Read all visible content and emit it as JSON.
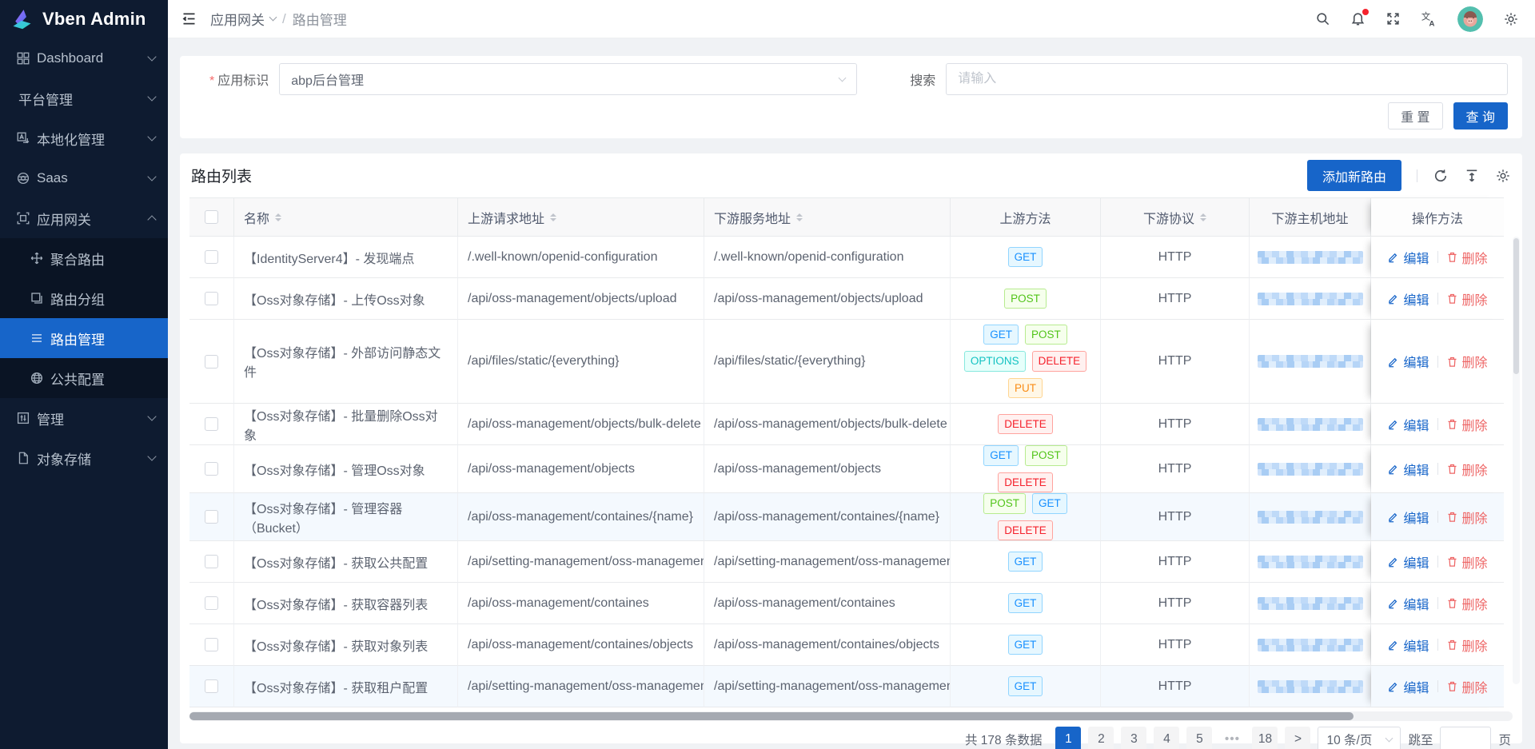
{
  "app": {
    "title": "Vben Admin"
  },
  "sidebar": {
    "items": [
      {
        "label": "Dashboard",
        "icon": "dashboard-icon",
        "chevron": "down"
      },
      {
        "label": "平台管理",
        "icon": null,
        "chevron": "down"
      },
      {
        "label": "本地化管理",
        "icon": "localization-icon",
        "chevron": "down"
      },
      {
        "label": "Saas",
        "icon": "saas-icon",
        "chevron": "down"
      },
      {
        "label": "应用网关",
        "icon": "gateway-icon",
        "chevron": "up",
        "expanded": true,
        "children": [
          {
            "label": "聚合路由",
            "icon": "aggregate-route-icon",
            "active": false
          },
          {
            "label": "路由分组",
            "icon": "route-group-icon",
            "active": false
          },
          {
            "label": "路由管理",
            "icon": "route-list-icon",
            "active": true
          },
          {
            "label": "公共配置",
            "icon": "global-config-icon",
            "active": false
          }
        ]
      },
      {
        "label": "管理",
        "icon": "manage-icon",
        "chevron": "down"
      },
      {
        "label": "对象存储",
        "icon": "object-storage-icon",
        "chevron": "down"
      }
    ]
  },
  "header": {
    "breadcrumb": {
      "parent": "应用网关",
      "separator": "/",
      "current": "路由管理"
    },
    "icons": [
      "search-icon",
      "notification-icon",
      "fullscreen-icon",
      "translate-icon",
      "avatar",
      "settings-icon"
    ],
    "notification_badge_color": "#f5222d"
  },
  "filter": {
    "app_label": "应用标识",
    "required_mark": "*",
    "app_value": "abp后台管理",
    "search_label": "搜索",
    "search_placeholder": "请输入",
    "reset_label": "重 置",
    "query_label": "查 询"
  },
  "table": {
    "title": "路由列表",
    "add_button": "添加新路由",
    "toolbar_icons": [
      "refresh-icon",
      "row-height-icon",
      "column-settings-icon"
    ],
    "columns": [
      {
        "label": "",
        "key": "checkbox",
        "sortable": false
      },
      {
        "label": "名称",
        "key": "name",
        "sortable": true
      },
      {
        "label": "上游请求地址",
        "key": "upstream",
        "sortable": true
      },
      {
        "label": "下游服务地址",
        "key": "downstream",
        "sortable": true
      },
      {
        "label": "上游方法",
        "key": "methods",
        "sortable": false
      },
      {
        "label": "下游协议",
        "key": "protocol",
        "sortable": true
      },
      {
        "label": "下游主机地址",
        "key": "host",
        "sortable": false
      },
      {
        "label": "操作方法",
        "key": "ops",
        "sortable": false
      }
    ],
    "method_styles": {
      "GET": {
        "fg": "#1890ff",
        "bg": "#e6f7ff",
        "bd": "#91d5ff"
      },
      "POST": {
        "fg": "#52c41a",
        "bg": "#f6ffed",
        "bd": "#b7eb8f"
      },
      "OPTIONS": {
        "fg": "#13c2c2",
        "bg": "#e6fffb",
        "bd": "#87e8de"
      },
      "DELETE": {
        "fg": "#f5222d",
        "bg": "#fff1f0",
        "bd": "#ffa39e"
      },
      "PUT": {
        "fg": "#fa8c16",
        "bg": "#fff7e6",
        "bd": "#ffd591"
      }
    },
    "rows": [
      {
        "name": "【IdentityServer4】- 发现端点",
        "upstream": "/.well-known/openid-configuration",
        "downstream": "/.well-known/openid-configuration",
        "methods": [
          "GET"
        ],
        "protocol": "HTTP",
        "host_redacted": true,
        "tall": false,
        "tinted": false
      },
      {
        "name": "【Oss对象存储】- 上传Oss对象",
        "upstream": "/api/oss-management/objects/upload",
        "downstream": "/api/oss-management/objects/upload",
        "methods": [
          "POST"
        ],
        "protocol": "HTTP",
        "host_redacted": true,
        "tall": false,
        "tinted": false
      },
      {
        "name": "【Oss对象存储】- 外部访问静态文件",
        "upstream": "/api/files/static/{everything}",
        "downstream": "/api/files/static/{everything}",
        "methods": [
          "GET",
          "POST",
          "OPTIONS",
          "DELETE",
          "PUT"
        ],
        "protocol": "HTTP",
        "host_redacted": true,
        "tall": true,
        "tinted": false
      },
      {
        "name": "【Oss对象存储】- 批量删除Oss对象",
        "upstream": "/api/oss-management/objects/bulk-delete",
        "downstream": "/api/oss-management/objects/bulk-delete",
        "methods": [
          "DELETE"
        ],
        "protocol": "HTTP",
        "host_redacted": true,
        "tall": false,
        "tinted": false
      },
      {
        "name": "【Oss对象存储】- 管理Oss对象",
        "upstream": "/api/oss-management/objects",
        "downstream": "/api/oss-management/objects",
        "methods": [
          "GET",
          "POST",
          "DELETE"
        ],
        "protocol": "HTTP",
        "host_redacted": true,
        "tall": false,
        "tinted": false
      },
      {
        "name": "【Oss对象存储】- 管理容器（Bucket）",
        "upstream": "/api/oss-management/containes/{name}",
        "downstream": "/api/oss-management/containes/{name}",
        "methods": [
          "POST",
          "GET",
          "DELETE"
        ],
        "protocol": "HTTP",
        "host_redacted": true,
        "tall": false,
        "tinted": true
      },
      {
        "name": "【Oss对象存储】- 获取公共配置",
        "upstream": "/api/setting-management/oss-management/b...",
        "downstream": "/api/setting-management/oss-management/b...",
        "methods": [
          "GET"
        ],
        "protocol": "HTTP",
        "host_redacted": true,
        "tall": false,
        "tinted": false
      },
      {
        "name": "【Oss对象存储】- 获取容器列表",
        "upstream": "/api/oss-management/containes",
        "downstream": "/api/oss-management/containes",
        "methods": [
          "GET"
        ],
        "protocol": "HTTP",
        "host_redacted": true,
        "tall": false,
        "tinted": false
      },
      {
        "name": "【Oss对象存储】- 获取对象列表",
        "upstream": "/api/oss-management/containes/objects",
        "downstream": "/api/oss-management/containes/objects",
        "methods": [
          "GET"
        ],
        "protocol": "HTTP",
        "host_redacted": true,
        "tall": false,
        "tinted": false
      },
      {
        "name": "【Oss对象存储】- 获取租户配置",
        "upstream": "/api/setting-management/oss-management/b...",
        "downstream": "/api/setting-management/oss-management/b...",
        "methods": [
          "GET"
        ],
        "protocol": "HTTP",
        "host_redacted": true,
        "tall": false,
        "tinted": true
      }
    ],
    "ops": {
      "edit": "编辑",
      "delete": "删除"
    }
  },
  "pagination": {
    "total": "共 178 条数据",
    "pages": [
      "1",
      "2",
      "3",
      "4",
      "5",
      "•••",
      "18"
    ],
    "active": "1",
    "next": ">",
    "page_size": "10 条/页",
    "jump_prefix": "跳至",
    "jump_suffix": "页"
  },
  "colors": {
    "primary": "#1765c9",
    "sidebar_bg": "#0e1b30",
    "delete_red": "#ee6666",
    "content_bg": "#f0f2f5"
  }
}
